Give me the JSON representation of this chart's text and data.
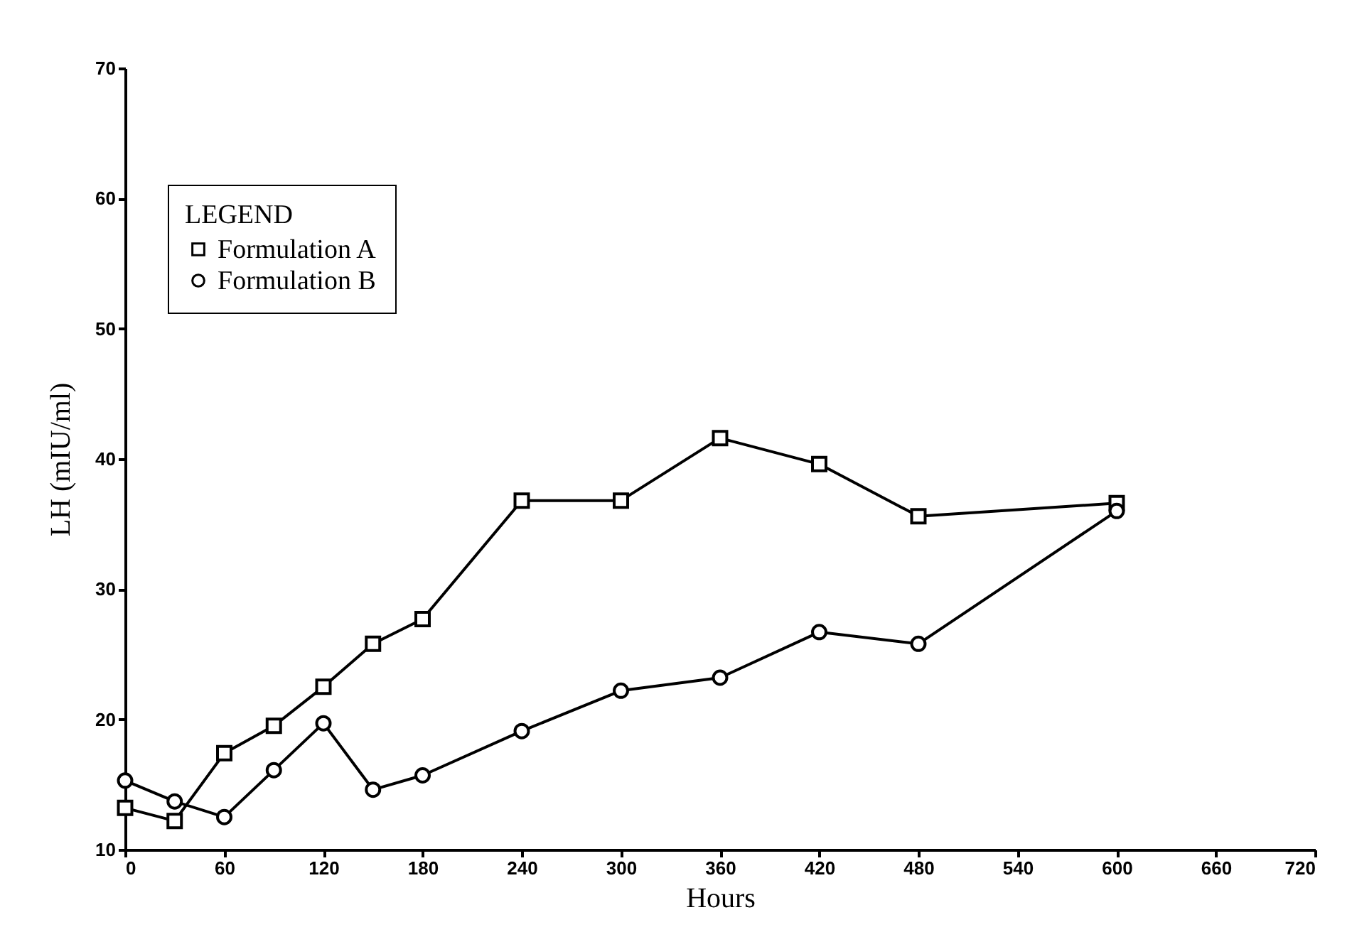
{
  "chart_data": {
    "type": "line",
    "xlabel": "Hours",
    "ylabel": "LH (mIU/ml)",
    "legend_title": "LEGEND",
    "legend": "top left",
    "xlim": [
      0,
      720
    ],
    "xticks": [
      0,
      60,
      120,
      180,
      240,
      300,
      360,
      420,
      480,
      540,
      600,
      660,
      720
    ],
    "ylim": [
      10,
      70
    ],
    "yticks": [
      10,
      20,
      30,
      40,
      50,
      60,
      70
    ],
    "grid": false,
    "series": [
      {
        "name": "Formulation A",
        "color": "#000000",
        "marker": "square",
        "x": [
          0,
          30,
          60,
          90,
          120,
          150,
          180,
          240,
          300,
          360,
          420,
          480,
          600
        ],
        "values": [
          13.2,
          12.2,
          17.4,
          19.5,
          22.5,
          25.8,
          27.7,
          36.8,
          36.8,
          41.6,
          39.6,
          35.6,
          36.6
        ]
      },
      {
        "name": "Formulation B",
        "color": "#000000",
        "marker": "circle",
        "x": [
          0,
          30,
          60,
          90,
          120,
          150,
          180,
          240,
          300,
          360,
          420,
          480,
          600
        ],
        "values": [
          15.3,
          13.7,
          12.5,
          16.1,
          19.7,
          14.6,
          15.7,
          19.1,
          22.2,
          23.2,
          26.7,
          25.8,
          36.0
        ]
      }
    ]
  }
}
